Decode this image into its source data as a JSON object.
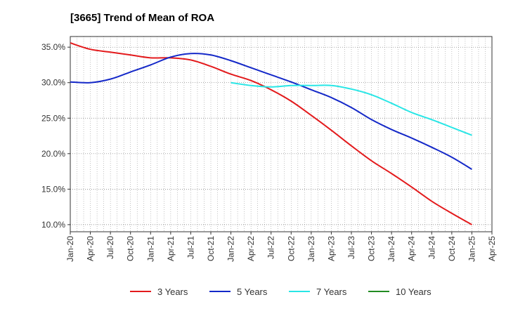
{
  "chart_data": {
    "type": "line",
    "title": "[3665]  Trend of Mean of ROA",
    "xlabel": "",
    "ylabel": "",
    "ylim": [
      9.0,
      36.5
    ],
    "y_ticks": [
      10,
      15,
      20,
      25,
      30,
      35
    ],
    "y_tick_labels": [
      "10.0%",
      "15.0%",
      "20.0%",
      "25.0%",
      "30.0%",
      "35.0%"
    ],
    "x_tick_labels": [
      "Jan-20",
      "Apr-20",
      "Jul-20",
      "Oct-20",
      "Jan-21",
      "Apr-21",
      "Jul-21",
      "Oct-21",
      "Jan-22",
      "Apr-22",
      "Jul-22",
      "Oct-22",
      "Jan-23",
      "Apr-23",
      "Jul-23",
      "Oct-23",
      "Jan-24",
      "Apr-24",
      "Jul-24",
      "Oct-24",
      "Jan-25",
      "Apr-25"
    ],
    "grid": true,
    "legend_position": "bottom",
    "series": [
      {
        "name": "3 Years",
        "color": "#e31a1c",
        "x": [
          "Jan-20",
          "Apr-20",
          "Jul-20",
          "Oct-20",
          "Jan-21",
          "Apr-21",
          "Jul-21",
          "Oct-21",
          "Jan-22",
          "Apr-22",
          "Jul-22",
          "Oct-22",
          "Jan-23",
          "Apr-23",
          "Jul-23",
          "Oct-23",
          "Jan-24",
          "Apr-24",
          "Jul-24",
          "Oct-24",
          "Jan-25"
        ],
        "values": [
          35.6,
          34.7,
          34.3,
          33.9,
          33.5,
          33.5,
          33.2,
          32.3,
          31.2,
          30.3,
          29.0,
          27.4,
          25.4,
          23.3,
          21.1,
          19.0,
          17.2,
          15.3,
          13.3,
          11.6,
          10.0
        ]
      },
      {
        "name": "5 Years",
        "color": "#1428c8",
        "x": [
          "Jan-20",
          "Apr-20",
          "Jul-20",
          "Oct-20",
          "Jan-21",
          "Apr-21",
          "Jul-21",
          "Oct-21",
          "Jan-22",
          "Apr-22",
          "Jul-22",
          "Oct-22",
          "Jan-23",
          "Apr-23",
          "Jul-23",
          "Oct-23",
          "Jan-24",
          "Apr-24",
          "Jul-24",
          "Oct-24",
          "Jan-25"
        ],
        "values": [
          30.1,
          30.0,
          30.5,
          31.5,
          32.5,
          33.6,
          34.1,
          33.9,
          33.1,
          32.1,
          31.1,
          30.1,
          29.0,
          27.9,
          26.5,
          24.8,
          23.4,
          22.2,
          20.9,
          19.5,
          17.8
        ]
      },
      {
        "name": "7 Years",
        "color": "#28e6e6",
        "x": [
          "Jan-22",
          "Apr-22",
          "Jul-22",
          "Oct-22",
          "Jan-23",
          "Apr-23",
          "Jul-23",
          "Oct-23",
          "Jan-24",
          "Apr-24",
          "Jul-24",
          "Oct-24",
          "Jan-25"
        ],
        "values": [
          30.0,
          29.6,
          29.4,
          29.6,
          29.6,
          29.6,
          29.1,
          28.3,
          27.1,
          25.8,
          24.8,
          23.7,
          22.6
        ]
      },
      {
        "name": "10 Years",
        "color": "#228b22",
        "x": [],
        "values": []
      }
    ]
  }
}
